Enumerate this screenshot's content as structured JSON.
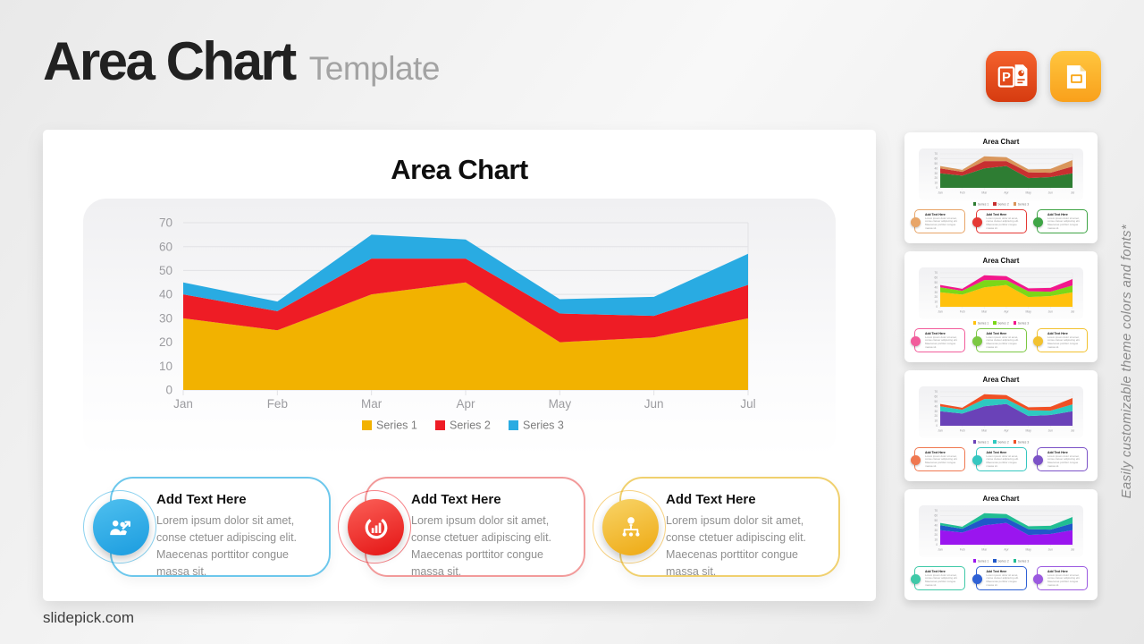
{
  "header": {
    "title": "Area Chart",
    "subtitle": "Template"
  },
  "app_icons": [
    {
      "name": "powerpoint-icon",
      "color_top": "#f4622d",
      "color_bottom": "#d63b10"
    },
    {
      "name": "google-slides-icon",
      "color_top": "#ffc63f",
      "color_bottom": "#f9a01b"
    }
  ],
  "slide": {
    "title": "Area Chart",
    "cards": [
      {
        "title": "Add Text Here",
        "body": "Lorem ipsum dolor sit amet, conse ctetuer adipiscing elit. Maecenas porttitor congue massa sit.",
        "icon": "team-growth-icon",
        "accent": "#29ABE2",
        "border": "#6cc7ec",
        "gradient": [
          "#4fc0ef",
          "#1b9cdf"
        ]
      },
      {
        "title": "Add Text Here",
        "body": "Lorem ipsum dolor sit amet, conse ctetuer adipiscing elit. Maecenas porttitor congue massa sit.",
        "icon": "pie-chart-icon",
        "accent": "#EE1C25",
        "border": "#f29a9a",
        "gradient": [
          "#fb6058",
          "#e41414"
        ]
      },
      {
        "title": "Add Text Here",
        "body": "Lorem ipsum dolor sit amet, conse ctetuer adipiscing elit. Maecenas porttitor congue massa sit.",
        "icon": "org-idea-icon",
        "accent": "#F0AD1C",
        "border": "#f0d06e",
        "gradient": [
          "#f8d468",
          "#eea912"
        ]
      }
    ]
  },
  "chart_data": {
    "type": "area",
    "stacked": true,
    "title": "Area Chart",
    "x": [
      "Jan",
      "Feb",
      "Mar",
      "Apr",
      "May",
      "Jun",
      "Jul"
    ],
    "series": [
      {
        "name": "Series 1",
        "color": "#F2B200",
        "values": [
          30,
          25,
          40,
          45,
          20,
          22,
          30
        ]
      },
      {
        "name": "Series 2",
        "color": "#EE1C25",
        "values": [
          10,
          8,
          15,
          10,
          12,
          9,
          14
        ]
      },
      {
        "name": "Series 3",
        "color": "#29ABE2",
        "values": [
          5,
          4,
          10,
          8,
          6,
          8,
          13
        ]
      }
    ],
    "stacked_tops": {
      "series1": [
        30,
        25,
        40,
        45,
        20,
        22,
        30
      ],
      "series2": [
        40,
        33,
        55,
        55,
        32,
        31,
        44
      ],
      "series3": [
        45,
        37,
        65,
        63,
        38,
        39,
        57
      ]
    },
    "xlabel": "",
    "ylabel": "",
    "ylim": [
      0,
      70
    ],
    "yticks": [
      0,
      10,
      20,
      30,
      40,
      50,
      60,
      70
    ],
    "grid": true,
    "legend_position": "bottom"
  },
  "sidebar": {
    "note": "Easily customizable theme colors and fonts*",
    "thumbnails": [
      {
        "title": "Area Chart",
        "card_title": "Add Text Here",
        "card_body": "Lorem ipsum dolor sit amet, conse ctetuer adipiscing elit. Maecenas porttitor congue massa sit.",
        "series_colors": [
          "#2E7D33",
          "#C73030",
          "#D9965B"
        ],
        "icon_colors": [
          "#E8A568",
          "#E53935",
          "#3FA546"
        ]
      },
      {
        "title": "Area Chart",
        "card_title": "Add Text Here",
        "card_body": "Lorem ipsum dolor sit amet, conse ctetuer adipiscing elit. Maecenas porttitor congue massa sit.",
        "series_colors": [
          "#FFC10D",
          "#7BD718",
          "#F2188C"
        ],
        "icon_colors": [
          "#F25C9B",
          "#7CC843",
          "#F2C230"
        ]
      },
      {
        "title": "Area Chart",
        "card_title": "Add Text Here",
        "card_body": "Lorem ipsum dolor sit amet, conse ctetuer adipiscing elit. Maecenas porttitor congue massa sit.",
        "series_colors": [
          "#6A42B8",
          "#2EC9C0",
          "#F05024"
        ],
        "icon_colors": [
          "#F07850",
          "#35C7C0",
          "#7C52C7"
        ]
      },
      {
        "title": "Area Chart",
        "card_title": "Add Text Here",
        "card_body": "Lorem ipsum dolor sit amet, conse ctetuer adipiscing elit. Maecenas porttitor congue massa sit.",
        "series_colors": [
          "#9A15EF",
          "#2058C9",
          "#21BD93"
        ],
        "icon_colors": [
          "#3FC9A8",
          "#2F61D5",
          "#9B59E0"
        ]
      }
    ]
  },
  "footer": {
    "site": "slidepick.com"
  }
}
